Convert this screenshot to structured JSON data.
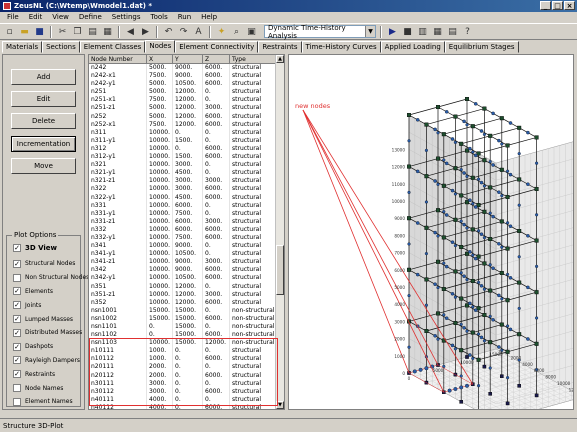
{
  "window": {
    "title": "ZeusNL (C:\\Wtemp\\Wmodel1.dat) *",
    "min": "_",
    "max": "□",
    "close": "×"
  },
  "menu": [
    "File",
    "Edit",
    "View",
    "Define",
    "Settings",
    "Tools",
    "Run",
    "Help"
  ],
  "toolbar": {
    "analysis_type": "Dynamic Time-History Analysis"
  },
  "tabs": [
    "Materials",
    "Sections",
    "Element Classes",
    "Nodes",
    "Element Connectivity",
    "Restraints",
    "Time-History Curves",
    "Applied Loading",
    "Equilibrium Stages"
  ],
  "active_tab": "Nodes",
  "buttons": {
    "add": "Add",
    "edit": "Edit",
    "delete": "Delete",
    "incrementation": "Incrementation",
    "move": "Move"
  },
  "plot_options": {
    "title": "Plot Options",
    "items": [
      {
        "label": "3D View",
        "checked": true
      },
      {
        "label": "Structural Nodes",
        "checked": true
      },
      {
        "label": "Non Structural Nodes",
        "checked": false
      },
      {
        "label": "Elements",
        "checked": true
      },
      {
        "label": "Joints",
        "checked": true
      },
      {
        "label": "Lumped Masses",
        "checked": true
      },
      {
        "label": "Distributed Masses",
        "checked": true
      },
      {
        "label": "Dashpots",
        "checked": true
      },
      {
        "label": "Rayleigh Dampers",
        "checked": true
      },
      {
        "label": "Restraints",
        "checked": true
      },
      {
        "label": "Node Names",
        "checked": false
      },
      {
        "label": "Element Names",
        "checked": false
      }
    ]
  },
  "table": {
    "headers": [
      "Node Number",
      "X",
      "Y",
      "Z",
      "Type"
    ],
    "rows": [
      [
        "n242",
        "5000.",
        "9000.",
        "6000.",
        "structural"
      ],
      [
        "n242-x1",
        "7500.",
        "9000.",
        "6000.",
        "structural"
      ],
      [
        "n242-y1",
        "5000.",
        "10500.",
        "6000.",
        "structural"
      ],
      [
        "n251",
        "5000.",
        "12000.",
        "0.",
        "structural"
      ],
      [
        "n251-x1",
        "7500.",
        "12000.",
        "0.",
        "structural"
      ],
      [
        "n251-z1",
        "5000.",
        "12000.",
        "3000.",
        "structural"
      ],
      [
        "n252",
        "5000.",
        "12000.",
        "6000.",
        "structural"
      ],
      [
        "n252-x1",
        "7500.",
        "12000.",
        "6000.",
        "structural"
      ],
      [
        "n311",
        "10000.",
        "0.",
        "0.",
        "structural"
      ],
      [
        "n311-y1",
        "10000.",
        "1500.",
        "0.",
        "structural"
      ],
      [
        "n312",
        "10000.",
        "0.",
        "6000.",
        "structural"
      ],
      [
        "n312-y1",
        "10000.",
        "1500.",
        "6000.",
        "structural"
      ],
      [
        "n321",
        "10000.",
        "3000.",
        "0.",
        "structural"
      ],
      [
        "n321-y1",
        "10000.",
        "4500.",
        "0.",
        "structural"
      ],
      [
        "n321-z1",
        "10000.",
        "3000.",
        "3000.",
        "structural"
      ],
      [
        "n322",
        "10000.",
        "3000.",
        "6000.",
        "structural"
      ],
      [
        "n322-y1",
        "10000.",
        "4500.",
        "6000.",
        "structural"
      ],
      [
        "n331",
        "10000.",
        "6000.",
        "0.",
        "structural"
      ],
      [
        "n331-y1",
        "10000.",
        "7500.",
        "0.",
        "structural"
      ],
      [
        "n331-z1",
        "10000.",
        "6000.",
        "3000.",
        "structural"
      ],
      [
        "n332",
        "10000.",
        "6000.",
        "6000.",
        "structural"
      ],
      [
        "n332-y1",
        "10000.",
        "7500.",
        "6000.",
        "structural"
      ],
      [
        "n341",
        "10000.",
        "9000.",
        "0.",
        "structural"
      ],
      [
        "n341-y1",
        "10000.",
        "10500.",
        "0.",
        "structural"
      ],
      [
        "n341-z1",
        "10000.",
        "9000.",
        "3000.",
        "structural"
      ],
      [
        "n342",
        "10000.",
        "9000.",
        "6000.",
        "structural"
      ],
      [
        "n342-y1",
        "10000.",
        "10500.",
        "6000.",
        "structural"
      ],
      [
        "n351",
        "10000.",
        "12000.",
        "0.",
        "structural"
      ],
      [
        "n351-z1",
        "10000.",
        "12000.",
        "3000.",
        "structural"
      ],
      [
        "n352",
        "10000.",
        "12000.",
        "6000.",
        "structural"
      ],
      [
        "nsn1001",
        "15000.",
        "15000.",
        "0.",
        "non-structural"
      ],
      [
        "nsn1002",
        "15000.",
        "15000.",
        "6000.",
        "non-structural"
      ],
      [
        "nsn1101",
        "0.",
        "15000.",
        "0.",
        "non-structural"
      ],
      [
        "nsn1102",
        "0.",
        "15000.",
        "6000.",
        "non-structural"
      ],
      [
        "nsn1103",
        "10000.",
        "15000.",
        "12000.",
        "non-structural"
      ],
      [
        "n10111",
        "1000.",
        "0.",
        "0.",
        "structural"
      ],
      [
        "n10112",
        "1000.",
        "0.",
        "6000.",
        "structural"
      ],
      [
        "n20111",
        "2000.",
        "0.",
        "0.",
        "structural"
      ],
      [
        "n20112",
        "2000.",
        "0.",
        "6000.",
        "structural"
      ],
      [
        "n30111",
        "3000.",
        "0.",
        "0.",
        "structural"
      ],
      [
        "n30112",
        "3000.",
        "0.",
        "6000.",
        "structural"
      ],
      [
        "n40111",
        "4000.",
        "0.",
        "0.",
        "structural"
      ],
      [
        "n40112",
        "4000.",
        "0.",
        "6000.",
        "structural"
      ]
    ]
  },
  "plot": {
    "annotation": "new nodes",
    "accent": "#e03030",
    "axis_left": [
      "0",
      "1000",
      "2000",
      "3000",
      "4000",
      "5000",
      "6000",
      "7000",
      "8000",
      "9000",
      "10000",
      "11000",
      "12000",
      "13000"
    ],
    "axis_bottom_y": [
      "0",
      "2000",
      "4000",
      "6000",
      "8000",
      "10000",
      "12000",
      "14000"
    ],
    "axis_bottom_x": [
      "0",
      "5000",
      "10000",
      "15000"
    ]
  },
  "status": "Structure 3D-Plot"
}
